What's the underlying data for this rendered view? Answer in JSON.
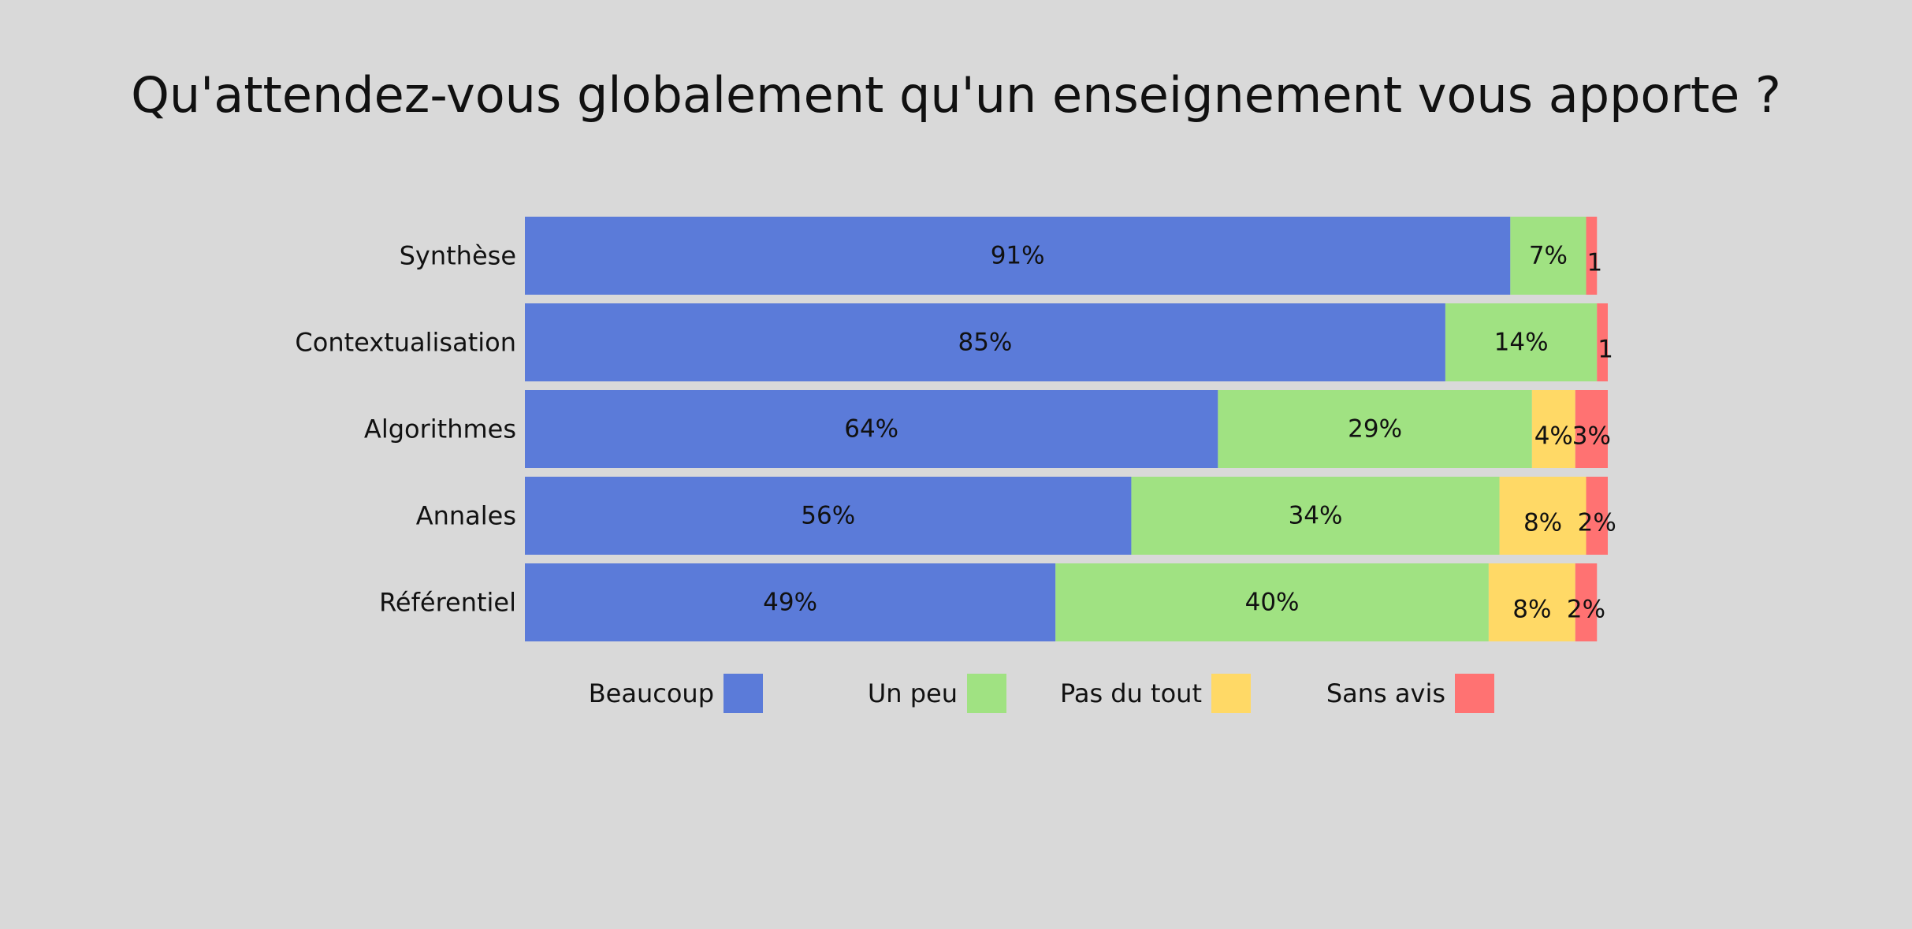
{
  "chart_data": {
    "type": "bar",
    "orientation": "horizontal",
    "stacked": true,
    "title": "Qu'attendez-vous globalement qu'un enseignement vous apporte ?",
    "categories": [
      "Synthèse",
      "Contextualisation",
      "Algorithmes",
      "Annales",
      "Référentiel"
    ],
    "series": [
      {
        "name": "Beaucoup",
        "color": "#5b7bd9",
        "values": [
          91,
          85,
          64,
          56,
          49
        ],
        "labels": [
          "91%",
          "85%",
          "64%",
          "56%",
          "49%"
        ]
      },
      {
        "name": "Un peu",
        "color": "#a0e282",
        "values": [
          7,
          14,
          29,
          34,
          40
        ],
        "labels": [
          "7%",
          "14%",
          "29%",
          "34%",
          "40%"
        ]
      },
      {
        "name": "Pas du tout",
        "color": "#ffd966",
        "values": [
          0,
          0,
          4,
          8,
          8
        ],
        "labels": [
          "",
          "",
          "4%",
          "8%",
          "8%"
        ]
      },
      {
        "name": "Sans avis",
        "color": "#ff7272",
        "values": [
          1,
          1,
          3,
          2,
          2
        ],
        "labels": [
          "1",
          "1",
          "3%",
          "2%",
          "2%"
        ]
      }
    ],
    "xlim": [
      0,
      100
    ],
    "grid": false,
    "legend_position": "bottom"
  }
}
